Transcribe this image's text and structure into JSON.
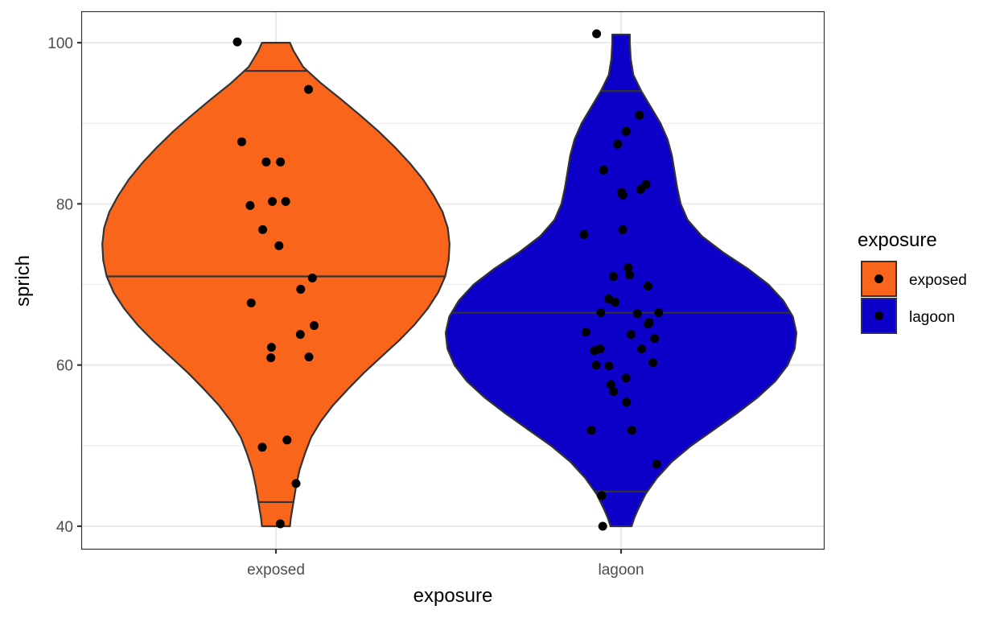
{
  "chart_data": {
    "type": "violin",
    "xlabel": "exposure",
    "ylabel": "sprich",
    "categories": [
      "exposed",
      "lagoon"
    ],
    "ylim": [
      37.2,
      103.9
    ],
    "yticks": [
      40,
      60,
      80,
      100
    ],
    "grid": true,
    "legend": {
      "title": "exposure",
      "position": "right",
      "entries": [
        {
          "label": "exposed",
          "color": "#f8651b"
        },
        {
          "label": "lagoon",
          "color": "#0d00c8"
        }
      ]
    },
    "violins": [
      {
        "category": "exposed",
        "color": "#f8651b",
        "quantiles": [
          43,
          71,
          96.5
        ],
        "profile": [
          [
            40,
            0.08
          ],
          [
            41,
            0.085
          ],
          [
            43,
            0.1
          ],
          [
            45,
            0.115
          ],
          [
            47,
            0.135
          ],
          [
            49,
            0.165
          ],
          [
            51,
            0.2
          ],
          [
            53,
            0.255
          ],
          [
            55,
            0.325
          ],
          [
            57,
            0.41
          ],
          [
            59,
            0.5
          ],
          [
            61,
            0.6
          ],
          [
            63,
            0.7
          ],
          [
            65,
            0.79
          ],
          [
            67,
            0.865
          ],
          [
            69,
            0.925
          ],
          [
            71,
            0.965
          ],
          [
            73,
            0.985
          ],
          [
            75,
            0.99
          ],
          [
            77,
            0.98
          ],
          [
            79,
            0.95
          ],
          [
            81,
            0.9
          ],
          [
            83,
            0.84
          ],
          [
            85,
            0.765
          ],
          [
            87,
            0.68
          ],
          [
            89,
            0.585
          ],
          [
            91,
            0.48
          ],
          [
            93,
            0.37
          ],
          [
            95,
            0.255
          ],
          [
            97,
            0.155
          ],
          [
            99,
            0.1
          ],
          [
            100,
            0.08
          ]
        ],
        "points": [
          100.1,
          94.2,
          87.7,
          85.2,
          85.2,
          80.3,
          80.3,
          79.8,
          76.8,
          74.8,
          70.8,
          69.4,
          67.7,
          64.9,
          63.8,
          62.2,
          61,
          60.9,
          50.7,
          49.8,
          45.3,
          40.3
        ]
      },
      {
        "category": "lagoon",
        "color": "#0d00c8",
        "quantiles": [
          44.3,
          66.5,
          94
        ],
        "profile": [
          [
            40,
            0.06
          ],
          [
            41,
            0.075
          ],
          [
            42,
            0.095
          ],
          [
            44,
            0.14
          ],
          [
            46,
            0.205
          ],
          [
            48,
            0.29
          ],
          [
            50,
            0.4
          ],
          [
            52,
            0.53
          ],
          [
            54,
            0.66
          ],
          [
            56,
            0.78
          ],
          [
            58,
            0.88
          ],
          [
            60,
            0.95
          ],
          [
            62,
            0.99
          ],
          [
            64,
            1
          ],
          [
            66,
            0.98
          ],
          [
            68,
            0.925
          ],
          [
            70,
            0.84
          ],
          [
            72,
            0.72
          ],
          [
            74,
            0.58
          ],
          [
            76,
            0.46
          ],
          [
            78,
            0.38
          ],
          [
            80,
            0.34
          ],
          [
            82,
            0.32
          ],
          [
            84,
            0.305
          ],
          [
            86,
            0.29
          ],
          [
            88,
            0.265
          ],
          [
            90,
            0.225
          ],
          [
            92,
            0.17
          ],
          [
            94,
            0.115
          ],
          [
            96,
            0.07
          ],
          [
            98,
            0.055
          ],
          [
            100,
            0.05
          ],
          [
            101,
            0.05
          ]
        ],
        "points": [
          101.1,
          91,
          89,
          87.4,
          84.2,
          82.4,
          81.8,
          81.4,
          81.1,
          76.8,
          76.2,
          72.1,
          71.2,
          71,
          69.8,
          68.2,
          67.8,
          66.5,
          66.5,
          66.4,
          65.3,
          65.1,
          64.1,
          63.8,
          63.3,
          62,
          62,
          61.8,
          60.3,
          60,
          59.9,
          58.4,
          57.6,
          56.7,
          55.4,
          51.9,
          51.9,
          47.7,
          43.8,
          40
        ]
      }
    ]
  }
}
